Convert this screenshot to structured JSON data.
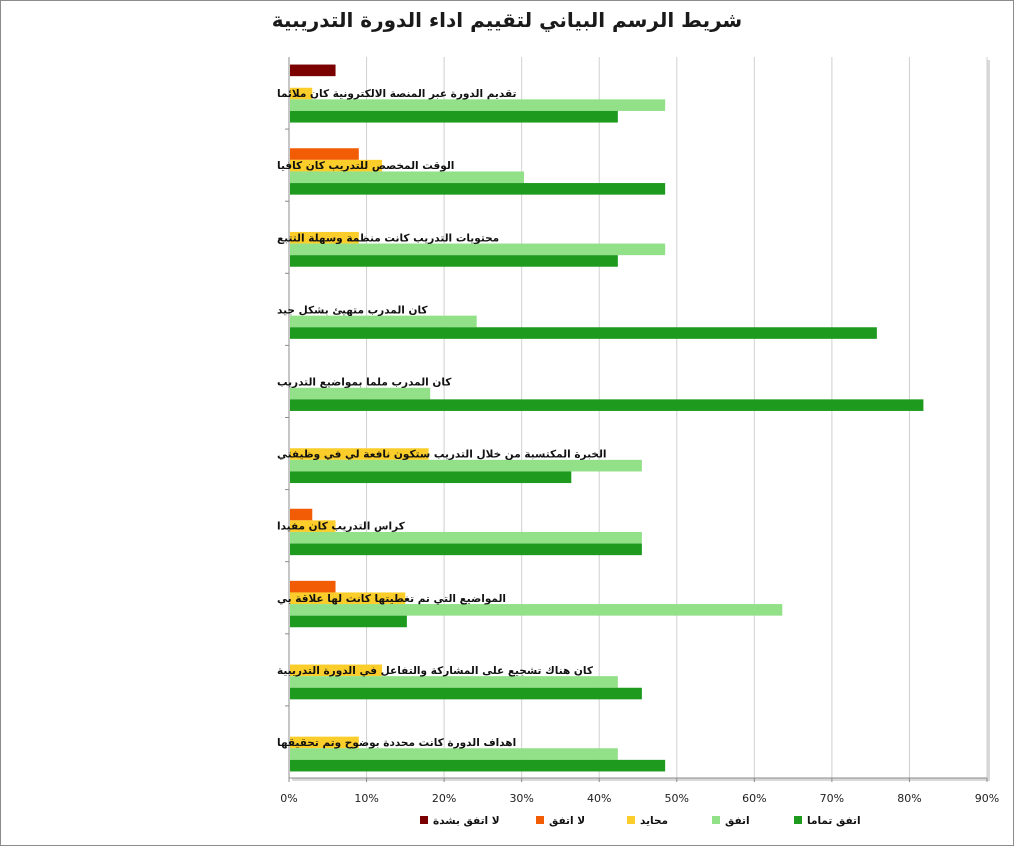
{
  "chart_data": {
    "type": "bar",
    "orientation": "horizontal",
    "title": "شريط الرسم البياني لتقييم اداء الدورة التدريبية",
    "xlabel": "",
    "ylabel": "",
    "xlim": [
      0,
      90
    ],
    "x_ticks": [
      "0%",
      "10%",
      "20%",
      "30%",
      "40%",
      "50%",
      "60%",
      "70%",
      "80%",
      "90%"
    ],
    "grid": true,
    "legend_position": "bottom",
    "categories": [
      "تقديم الدورة عبر المنصة الالكترونية كان ملائما",
      "الوقت المخصص للتدريب كان كافيا",
      "محتويات التدريب كانت منظمة وسهلة التتبع",
      "كان المدرب متهيئ بشكل جيد",
      "كان المدرب ملما بمواضيع التدريب",
      "الخبرة المكتسبة من خلال التدريب ستكون نافعة لي في وظيفتي",
      "كراس التدريب كان مفيدا",
      "المواضيع التي تم تغطيتها كانت لها علاقة بي",
      "كان هناك تشجيع على المشاركة والتفاعل في الدورة التدريبية",
      "اهداف الدورة كانت محددة بوضوح وتم تحقيقها"
    ],
    "series": [
      {
        "name": "لا اتفق بشدة",
        "color": "#7b0000",
        "values": [
          6,
          0,
          0,
          0,
          0,
          0,
          0,
          0,
          0,
          0
        ]
      },
      {
        "name": "لا اتفق",
        "color": "#f25c05",
        "values": [
          0,
          9,
          0,
          0,
          0,
          0,
          3,
          6,
          0,
          0
        ]
      },
      {
        "name": "محايد",
        "color": "#fbcd2b",
        "values": [
          3,
          12,
          9,
          0,
          0,
          18,
          6,
          15,
          12,
          9
        ]
      },
      {
        "name": "اتفق",
        "color": "#92e088",
        "values": [
          48.5,
          30.3,
          48.5,
          24.2,
          18.2,
          45.5,
          45.5,
          63.6,
          42.4,
          42.4
        ]
      },
      {
        "name": "اتفق تماما",
        "color": "#1e9a1e",
        "values": [
          42.4,
          48.5,
          42.4,
          75.8,
          81.8,
          36.4,
          45.5,
          15.2,
          45.5,
          48.5
        ]
      }
    ],
    "legend_order": [
      "لا اتفق بشدة",
      "لا اتفق",
      "محايد",
      "اتفق",
      "اتفق تماما"
    ]
  }
}
